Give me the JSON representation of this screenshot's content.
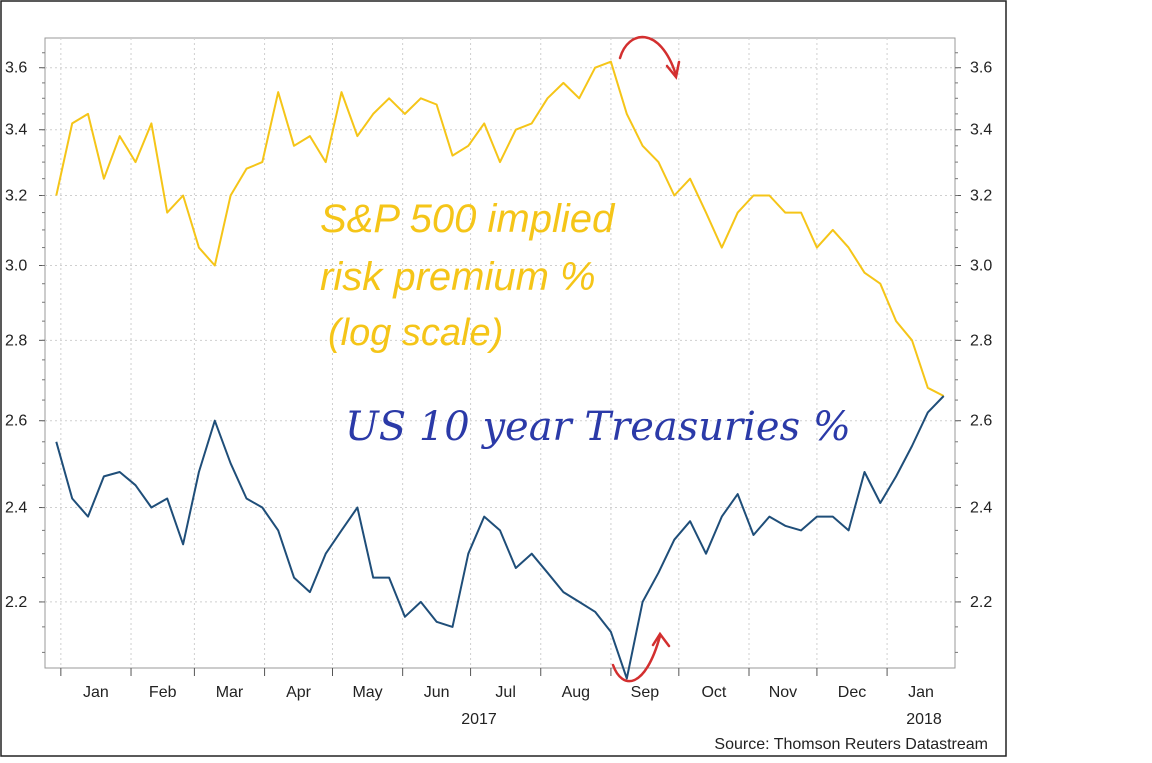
{
  "chart_data": {
    "type": "line",
    "y_scale": "log",
    "ylim": [
      2.07,
      3.7
    ],
    "y_ticks": [
      "2.2",
      "2.4",
      "2.6",
      "2.8",
      "3.0",
      "3.2",
      "3.4",
      "3.6"
    ],
    "x_tick_labels": [
      "Jan",
      "Feb",
      "Mar",
      "Apr",
      "May",
      "Jun",
      "Jul",
      "Aug",
      "Sep",
      "Oct",
      "Nov",
      "Dec",
      "Jan"
    ],
    "year_labels": [
      "2017",
      "2018"
    ],
    "grid": true,
    "source": "Source: Thomson Reuters Datastream",
    "annotations": {
      "risk_premium": [
        "S&P 500 implied",
        "risk premium %",
        "(log scale)"
      ],
      "treasuries": "US 10 year Treasuries %"
    },
    "colors": {
      "risk_premium": "#f5c518",
      "treasuries": "#1f4e79",
      "annotation_red": "#d32f2f",
      "annotation_blue": "#2b3aa8"
    },
    "series": [
      {
        "key": "risk_premium",
        "values": [
          [
            "2016-12-30",
            3.2
          ],
          [
            "2017-01-06",
            3.42
          ],
          [
            "2017-01-13",
            3.45
          ],
          [
            "2017-01-20",
            3.25
          ],
          [
            "2017-01-27",
            3.38
          ],
          [
            "2017-02-03",
            3.3
          ],
          [
            "2017-02-10",
            3.42
          ],
          [
            "2017-02-17",
            3.15
          ],
          [
            "2017-02-24",
            3.2
          ],
          [
            "2017-03-03",
            3.05
          ],
          [
            "2017-03-10",
            3.0
          ],
          [
            "2017-03-17",
            3.2
          ],
          [
            "2017-03-24",
            3.28
          ],
          [
            "2017-03-31",
            3.3
          ],
          [
            "2017-04-07",
            3.52
          ],
          [
            "2017-04-14",
            3.35
          ],
          [
            "2017-04-21",
            3.38
          ],
          [
            "2017-04-28",
            3.3
          ],
          [
            "2017-05-05",
            3.52
          ],
          [
            "2017-05-12",
            3.38
          ],
          [
            "2017-05-19",
            3.45
          ],
          [
            "2017-05-26",
            3.5
          ],
          [
            "2017-06-02",
            3.45
          ],
          [
            "2017-06-09",
            3.5
          ],
          [
            "2017-06-16",
            3.48
          ],
          [
            "2017-06-23",
            3.32
          ],
          [
            "2017-06-30",
            3.35
          ],
          [
            "2017-07-07",
            3.42
          ],
          [
            "2017-07-14",
            3.3
          ],
          [
            "2017-07-21",
            3.4
          ],
          [
            "2017-07-28",
            3.42
          ],
          [
            "2017-08-04",
            3.5
          ],
          [
            "2017-08-11",
            3.55
          ],
          [
            "2017-08-18",
            3.5
          ],
          [
            "2017-08-25",
            3.6
          ],
          [
            "2017-09-01",
            3.62
          ],
          [
            "2017-09-08",
            3.45
          ],
          [
            "2017-09-15",
            3.35
          ],
          [
            "2017-09-22",
            3.3
          ],
          [
            "2017-09-29",
            3.2
          ],
          [
            "2017-10-06",
            3.25
          ],
          [
            "2017-10-13",
            3.15
          ],
          [
            "2017-10-20",
            3.05
          ],
          [
            "2017-10-27",
            3.15
          ],
          [
            "2017-11-03",
            3.2
          ],
          [
            "2017-11-10",
            3.2
          ],
          [
            "2017-11-17",
            3.15
          ],
          [
            "2017-11-24",
            3.15
          ],
          [
            "2017-12-01",
            3.05
          ],
          [
            "2017-12-08",
            3.1
          ],
          [
            "2017-12-15",
            3.05
          ],
          [
            "2017-12-22",
            2.98
          ],
          [
            "2017-12-29",
            2.95
          ],
          [
            "2018-01-05",
            2.85
          ],
          [
            "2018-01-12",
            2.8
          ],
          [
            "2018-01-19",
            2.68
          ],
          [
            "2018-01-26",
            2.66
          ]
        ]
      },
      {
        "key": "treasuries",
        "values": [
          [
            "2016-12-30",
            2.55
          ],
          [
            "2017-01-06",
            2.42
          ],
          [
            "2017-01-13",
            2.38
          ],
          [
            "2017-01-20",
            2.47
          ],
          [
            "2017-01-27",
            2.48
          ],
          [
            "2017-02-03",
            2.45
          ],
          [
            "2017-02-10",
            2.4
          ],
          [
            "2017-02-17",
            2.42
          ],
          [
            "2017-02-24",
            2.32
          ],
          [
            "2017-03-03",
            2.48
          ],
          [
            "2017-03-10",
            2.6
          ],
          [
            "2017-03-17",
            2.5
          ],
          [
            "2017-03-24",
            2.42
          ],
          [
            "2017-03-31",
            2.4
          ],
          [
            "2017-04-07",
            2.35
          ],
          [
            "2017-04-14",
            2.25
          ],
          [
            "2017-04-21",
            2.22
          ],
          [
            "2017-04-28",
            2.3
          ],
          [
            "2017-05-05",
            2.35
          ],
          [
            "2017-05-12",
            2.4
          ],
          [
            "2017-05-19",
            2.25
          ],
          [
            "2017-05-26",
            2.25
          ],
          [
            "2017-06-02",
            2.17
          ],
          [
            "2017-06-09",
            2.2
          ],
          [
            "2017-06-16",
            2.16
          ],
          [
            "2017-06-23",
            2.15
          ],
          [
            "2017-06-30",
            2.3
          ],
          [
            "2017-07-07",
            2.38
          ],
          [
            "2017-07-14",
            2.35
          ],
          [
            "2017-07-21",
            2.27
          ],
          [
            "2017-07-28",
            2.3
          ],
          [
            "2017-08-04",
            2.26
          ],
          [
            "2017-08-11",
            2.22
          ],
          [
            "2017-08-18",
            2.2
          ],
          [
            "2017-08-25",
            2.18
          ],
          [
            "2017-09-01",
            2.14
          ],
          [
            "2017-09-08",
            2.05
          ],
          [
            "2017-09-15",
            2.2
          ],
          [
            "2017-09-22",
            2.26
          ],
          [
            "2017-09-29",
            2.33
          ],
          [
            "2017-10-06",
            2.37
          ],
          [
            "2017-10-13",
            2.3
          ],
          [
            "2017-10-20",
            2.38
          ],
          [
            "2017-10-27",
            2.43
          ],
          [
            "2017-11-03",
            2.34
          ],
          [
            "2017-11-10",
            2.38
          ],
          [
            "2017-11-17",
            2.36
          ],
          [
            "2017-11-24",
            2.35
          ],
          [
            "2017-12-01",
            2.38
          ],
          [
            "2017-12-08",
            2.38
          ],
          [
            "2017-12-15",
            2.35
          ],
          [
            "2017-12-22",
            2.48
          ],
          [
            "2017-12-29",
            2.41
          ],
          [
            "2018-01-05",
            2.47
          ],
          [
            "2018-01-12",
            2.54
          ],
          [
            "2018-01-19",
            2.62
          ],
          [
            "2018-01-26",
            2.66
          ]
        ]
      }
    ]
  }
}
